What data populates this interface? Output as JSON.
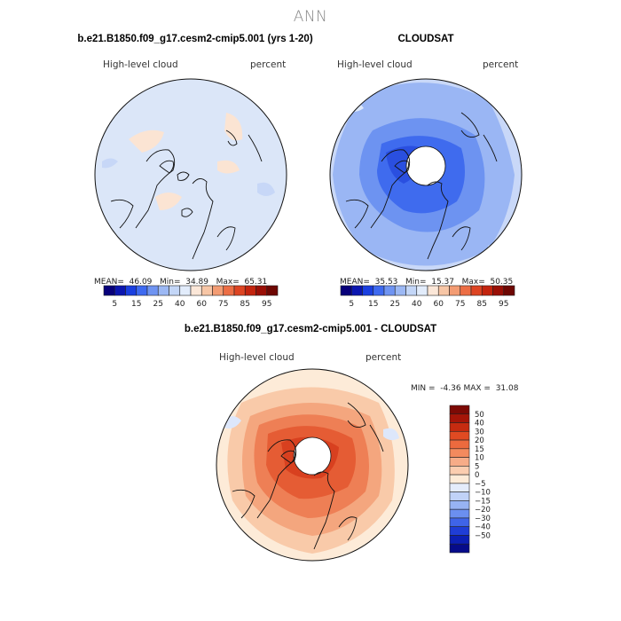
{
  "page": {
    "title": "ANN"
  },
  "panels": [
    {
      "title": "b.e21.B1850.f09_g17.cesm2-cmip5.001 (yrs 1-20)",
      "left_label": "High-level cloud",
      "right_label": "percent",
      "stats": {
        "mean_label": "MEAN=",
        "mean": "46.09",
        "min_label": "Min=",
        "min": "34.89",
        "max_label": "Max=",
        "max": "65.31"
      }
    },
    {
      "title": "CLOUDSAT",
      "left_label": "High-level cloud",
      "right_label": "percent",
      "stats": {
        "mean_label": "MEAN=",
        "mean": "35.53",
        "min_label": "Min=",
        "min": "15.37",
        "max_label": "Max=",
        "max": "50.35"
      }
    },
    {
      "title": "b.e21.B1850.f09_g17.cesm2-cmip5.001 - CLOUDSAT",
      "left_label": "High-level cloud",
      "right_label": "percent",
      "stats": {
        "min_label": "MIN =",
        "min": "-4.36",
        "max_label": "MAX =",
        "max": "31.08"
      }
    }
  ],
  "chart_data": [
    {
      "type": "heatmap",
      "projection": "north-polar-stereographic",
      "title": "b.e21.B1850.f09_g17.cesm2-cmip5.001 (yrs 1-20)",
      "variable": "High-level cloud",
      "units": "percent",
      "mean": 46.09,
      "min": 34.89,
      "max": 65.31,
      "colorbar": {
        "orientation": "horizontal",
        "levels": [
          5,
          10,
          15,
          20,
          25,
          30,
          40,
          50,
          60,
          70,
          75,
          80,
          85,
          90,
          95
        ],
        "tick_labels": [
          "5",
          "15",
          "25",
          "40",
          "60",
          "75",
          "85",
          "95"
        ],
        "colors": [
          "#08007a",
          "#0b16b0",
          "#1a3fe0",
          "#3e6af0",
          "#6f94f2",
          "#9cb8f4",
          "#c3d6f7",
          "#e2ecfb",
          "#fbe7d8",
          "#f7c6a6",
          "#f39c73",
          "#ec6e45",
          "#dd4422",
          "#c3240e",
          "#9a0f06",
          "#6e0703"
        ]
      },
      "field": {
        "background_level": "40-50",
        "pole_value": null
      }
    },
    {
      "type": "heatmap",
      "projection": "north-polar-stereographic",
      "title": "CLOUDSAT",
      "variable": "High-level cloud",
      "units": "percent",
      "mean": 35.53,
      "min": 15.37,
      "max": 50.35,
      "colorbar": {
        "orientation": "horizontal",
        "levels": [
          5,
          10,
          15,
          20,
          25,
          30,
          40,
          50,
          60,
          70,
          75,
          80,
          85,
          90,
          95
        ],
        "tick_labels": [
          "5",
          "15",
          "25",
          "40",
          "60",
          "75",
          "85",
          "95"
        ],
        "colors": [
          "#08007a",
          "#0b16b0",
          "#1a3fe0",
          "#3e6af0",
          "#6f94f2",
          "#9cb8f4",
          "#c3d6f7",
          "#e2ecfb",
          "#fbe7d8",
          "#f7c6a6",
          "#f39c73",
          "#ec6e45",
          "#dd4422",
          "#c3240e",
          "#9a0f06",
          "#6e0703"
        ]
      },
      "field": {
        "pole_hole": true
      }
    },
    {
      "type": "heatmap",
      "projection": "north-polar-stereographic",
      "title": "b.e21.B1850.f09_g17.cesm2-cmip5.001 - CLOUDSAT",
      "variable": "High-level cloud",
      "units": "percent",
      "min": -4.36,
      "max": 31.08,
      "colorbar": {
        "orientation": "vertical",
        "tick_labels": [
          "50",
          "40",
          "30",
          "20",
          "15",
          "10",
          "5",
          "0",
          "−5",
          "−10",
          "−15",
          "−20",
          "−30",
          "−40",
          "−50"
        ],
        "colors": [
          "#7d0a05",
          "#a51508",
          "#c62b10",
          "#e04a22",
          "#ec6a3e",
          "#f38a5e",
          "#f7ac88",
          "#fbcdb0",
          "#fdebd8",
          "#e4ecfb",
          "#c0d2f7",
          "#97b3f3",
          "#6b8ff0",
          "#3f64e8",
          "#1f3dd6",
          "#0c1fb4",
          "#060b8a"
        ]
      },
      "field": {
        "pole_hole": true
      }
    }
  ]
}
